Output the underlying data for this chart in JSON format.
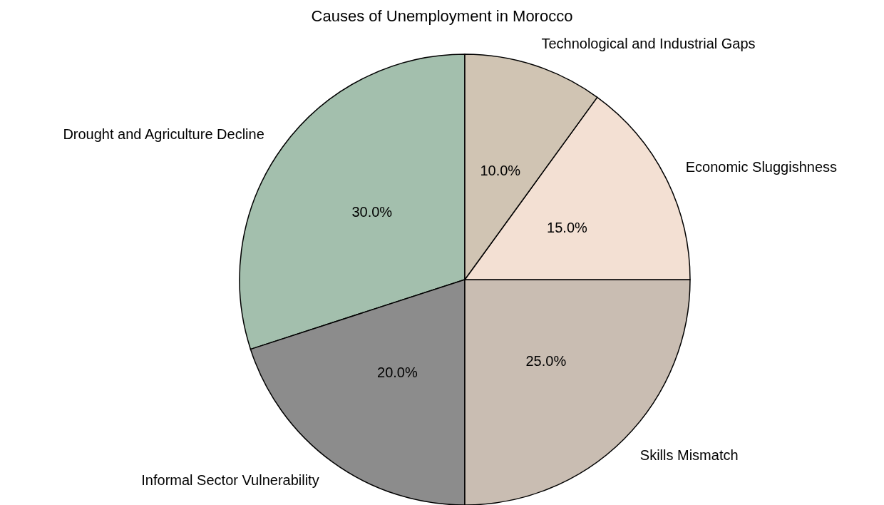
{
  "chart_data": {
    "type": "pie",
    "title": "Causes of Unemployment in Morocco",
    "categories": [
      "Drought and Agriculture Decline",
      "Informal Sector Vulnerability",
      "Skills Mismatch",
      "Economic Sluggishness",
      "Technological and Industrial Gaps"
    ],
    "values": [
      30,
      20,
      25,
      15,
      10
    ],
    "value_labels": [
      "30.0%",
      "20.0%",
      "25.0%",
      "15.0%",
      "10.0%"
    ],
    "colors": [
      "#a3bfad",
      "#8c8c8c",
      "#c9bdb2",
      "#f3e0d3",
      "#d0c4b3"
    ],
    "legend": false
  }
}
